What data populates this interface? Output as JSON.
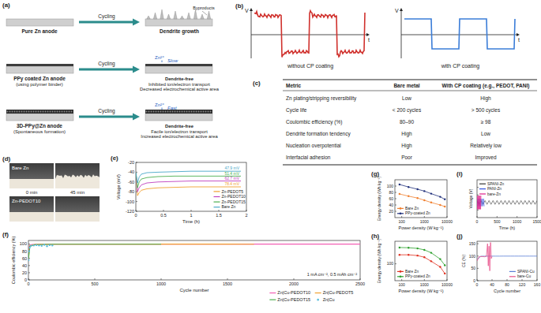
{
  "panels": {
    "a": {
      "label": "(a)",
      "rows": [
        {
          "name": "Pure Zn anode",
          "action": "Cycling",
          "note": "Byproducts",
          "result": [
            "Dendrite growth"
          ]
        },
        {
          "name": "PPy coated Zn anode",
          "sub": "(using polymer binder)",
          "action": "Cycling",
          "ion": "Zn²⁺",
          "speed": "Slow",
          "result": [
            "Dendrite-free",
            "Inhibited ion/electron transport",
            "Decreased electrochemical active area"
          ]
        },
        {
          "name": "3D-PPy@Zn anode",
          "sub": "(Spontaneous formation)",
          "action": "Cycling",
          "ion": "Zn²⁺",
          "speed": "Fast",
          "result": [
            "Dendrite-free",
            "Facile ion/electron transport",
            "Increased electrochemical active area"
          ]
        }
      ]
    },
    "b": {
      "label": "(b)",
      "plots": [
        {
          "y": "V",
          "x": "t",
          "caption": "without CP coating",
          "color": "#d0312d"
        },
        {
          "y": "V",
          "x": "t",
          "caption": "with CP coating",
          "color": "#3b7dd8"
        }
      ]
    },
    "c": {
      "label": "(c)",
      "header": [
        "Metric",
        "Bare metal",
        "With CP coating (e.g., PEDOT, PANI)"
      ],
      "rows": [
        [
          "Zn plating/stripping reversibility",
          "Low",
          "High"
        ],
        [
          "Cycle life",
          "< 200 cycles",
          "> 500 cycles"
        ],
        [
          "Coulombic efficiency (%)",
          "80–90",
          "≥ 98"
        ],
        [
          "Dendrite formation tendency",
          "High",
          "Low"
        ],
        [
          "Nucleation overpotential",
          "High",
          "Relatively low"
        ],
        [
          "Interfacial adhesion",
          "Poor",
          "Improved"
        ]
      ]
    },
    "d": {
      "label": "(d)",
      "samples": [
        "Bare Zn",
        "Zn-PEDOT10"
      ],
      "times": [
        "0 min",
        "45 min"
      ]
    }
  },
  "chart_data": [
    {
      "type": "line",
      "title": "(e)",
      "x_label": "Time (h)",
      "y_label": "Voltage (mV)",
      "xlim": [
        0,
        2
      ],
      "xticks": [
        0,
        0.5,
        1,
        1.5,
        2
      ],
      "ylim": [
        -120,
        -20
      ],
      "yticks": [
        -120,
        -100,
        -80,
        -60,
        -40,
        -20
      ],
      "grid": false,
      "legend": "lower right",
      "annotations": [
        "78.4 mV",
        "62.7 mV",
        "51.4 mV",
        "47.9 mV"
      ],
      "x": [
        0,
        0.03,
        0.06,
        0.1,
        0.2,
        0.4,
        0.7,
        1.0,
        1.3,
        1.6,
        1.9
      ],
      "series": [
        {
          "name": "Zn-PEDOT5",
          "color": "#f0a030",
          "values": [
            -40,
            -88,
            -82,
            -77,
            -74,
            -72,
            -71,
            -70,
            -70,
            -70,
            -70
          ]
        },
        {
          "name": "Zn-PEDOT10",
          "color": "#c040c0",
          "values": [
            -40,
            -80,
            -72,
            -66,
            -62,
            -60,
            -59,
            -58,
            -58,
            -58,
            -58
          ]
        },
        {
          "name": "Zn-PEDOT15",
          "color": "#4caf50",
          "values": [
            -40,
            -72,
            -60,
            -54,
            -51,
            -49,
            -48,
            -48,
            -48,
            -48,
            -48
          ]
        },
        {
          "name": "Bare Zn",
          "color": "#4aa8c8",
          "values": [
            -40,
            -62,
            -50,
            -44,
            -41,
            -40,
            -39,
            -38,
            -38,
            -38,
            -38
          ]
        }
      ]
    },
    {
      "type": "line",
      "title": "(f)",
      "x_label": "Cycle number",
      "y_label": "Coulombic efficiency (%)",
      "xlim": [
        0,
        2500
      ],
      "xticks": [
        0,
        500,
        1000,
        1500,
        2000,
        2500
      ],
      "ylim": [
        0,
        110
      ],
      "yticks": [
        0,
        20,
        40,
        60,
        80,
        100
      ],
      "grid": false,
      "legend": "below",
      "annotations": [
        "1 mA cm⁻², 0.5 mAh cm⁻²"
      ],
      "series": [
        {
          "name": "Zn|Cu-PEDOT10",
          "color": "#f25fb4",
          "line_style": "solid",
          "x": [
            1,
            5,
            10,
            30,
            100,
            300,
            500,
            1000,
            1500,
            2000,
            2500
          ],
          "values": [
            70,
            92,
            97,
            99,
            99.5,
            99.7,
            99.7,
            99.8,
            99.8,
            99.8,
            99.8
          ]
        },
        {
          "name": "Zn|Cu-PEDOT5",
          "color": "#f0a030",
          "line_style": "solid",
          "x": [
            1,
            10,
            50,
            200,
            500,
            1000,
            1500,
            1700
          ],
          "values": [
            65,
            95,
            99,
            99.5,
            99.6,
            99.7,
            99.7,
            99.6
          ]
        },
        {
          "name": "Zn|Cu-PEDOT15",
          "color": "#4caf50",
          "line_style": "solid",
          "x": [
            1,
            10,
            50,
            200,
            500,
            1000
          ],
          "values": [
            60,
            94,
            98.5,
            99.5,
            99.6,
            99.6
          ]
        },
        {
          "name": "Zn|Cu",
          "color": "#5bc0de",
          "marker": "circle",
          "line_style": "none",
          "x": [
            1,
            5,
            10,
            20,
            40,
            60,
            80,
            100,
            120,
            140,
            160,
            180
          ],
          "values": [
            55,
            80,
            90,
            95,
            96,
            97,
            96,
            95,
            98,
            94,
            97,
            96
          ]
        }
      ]
    },
    {
      "type": "line",
      "title": "(g)",
      "x_label": "Power density (W kg⁻¹)",
      "y_label": "Energy density (Wh kg⁻¹)",
      "log": "x",
      "xlim": [
        50,
        10000
      ],
      "xticks": [
        100,
        1000,
        10000
      ],
      "ylim": [
        0,
        120
      ],
      "yticks": [
        20,
        40,
        60,
        80,
        100
      ],
      "grid": false,
      "legend": "lower left",
      "x": [
        80,
        200,
        500,
        1000,
        2000,
        5000,
        8000
      ],
      "series": [
        {
          "name": "Bare Zn",
          "color": "#f08030",
          "marker": "circle",
          "values": [
            75,
            68,
            62,
            55,
            48,
            40,
            35
          ]
        },
        {
          "name": "PPy-coated Zn",
          "color": "#1f2f7a",
          "marker": "circle",
          "values": [
            105,
            97,
            90,
            84,
            76,
            66,
            58
          ]
        }
      ]
    },
    {
      "type": "line",
      "title": "(h)",
      "x_label": "Power density (W kg⁻¹)",
      "y_label": "Energy density (Wh kg⁻¹)",
      "log": true,
      "xlim": [
        50,
        10000
      ],
      "xticks": [
        100,
        1000,
        10000
      ],
      "ylim": [
        30,
        500
      ],
      "yticks": [
        100
      ],
      "grid": false,
      "legend": "lower left",
      "x": [
        80,
        200,
        500,
        1000,
        2000,
        5000,
        8000
      ],
      "series": [
        {
          "name": "Bare Zn",
          "color": "#e03020",
          "marker": "circle",
          "values": [
            190,
            190,
            180,
            160,
            120,
            80,
            50
          ]
        },
        {
          "name": "PPy-coated Zn",
          "color": "#2ca02c",
          "marker": "circle",
          "values": [
            320,
            315,
            300,
            270,
            220,
            140,
            90
          ]
        }
      ]
    },
    {
      "type": "line",
      "title": "(i)",
      "x_label": "Time (h)",
      "y_label": "Voltage (V)",
      "xlim": [
        0,
        1500
      ],
      "xticks": [
        0,
        500,
        1000,
        1500
      ],
      "ylim": [
        -0.4,
        0.6
      ],
      "yticks": [
        -0.2,
        0,
        0.2,
        0.4
      ],
      "tick_labels": "x",
      "grid": false,
      "legend": "upper left",
      "series": [
        {
          "name": "SPANI-Zn",
          "color": "#333333",
          "x": [
            0,
            50,
            100,
            150,
            200,
            250,
            300,
            350,
            400,
            450,
            500,
            550,
            600,
            650,
            700,
            750,
            800,
            850,
            900,
            950,
            1000,
            1050,
            1100,
            1150,
            1200,
            1250,
            1300,
            1350,
            1400,
            1450,
            1500
          ],
          "values": [
            0.05,
            -0.05,
            0.05,
            -0.05,
            0.05,
            -0.05,
            0.05,
            -0.05,
            0.05,
            -0.05,
            0.05,
            -0.05,
            0.05,
            -0.05,
            0.05,
            -0.05,
            0.05,
            -0.05,
            0.05,
            -0.05,
            0.05,
            -0.05,
            0.05,
            -0.05,
            0.05,
            -0.05,
            0.05,
            -0.05,
            0.05,
            -0.05,
            0.05
          ]
        },
        {
          "name": "PANI-Zn",
          "color": "#3050e0",
          "x": [
            0,
            20,
            40,
            60,
            80,
            100,
            120,
            140,
            160,
            180
          ],
          "values": [
            0.1,
            -0.1,
            0.1,
            -0.1,
            0.1,
            -0.1,
            0.1,
            -0.1,
            0.1,
            -0.1
          ]
        },
        {
          "name": "bare-Zn",
          "color": "#e0208a",
          "x": [
            0,
            10,
            20,
            30,
            40,
            50,
            60,
            70,
            80,
            90,
            100
          ],
          "values": [
            0.18,
            -0.18,
            0.18,
            -0.18,
            0.18,
            -0.18,
            0.18,
            -0.18,
            0.18,
            -0.18,
            0.18
          ]
        }
      ]
    },
    {
      "type": "line",
      "title": "(j)",
      "x_label": "Cycle number",
      "y_label": "CE (%)",
      "xlim": [
        0,
        160
      ],
      "xticks": [
        0,
        40,
        80,
        120,
        160
      ],
      "ylim": [
        0,
        160
      ],
      "yticks": [
        0,
        50,
        100,
        150
      ],
      "grid": false,
      "legend": "lower right",
      "series": [
        {
          "name": "SPANI-Cu",
          "color": "#5b7fd6",
          "x": [
            0,
            10,
            20,
            30,
            40,
            50,
            60,
            70,
            80,
            90,
            100,
            110,
            120,
            130,
            140,
            150,
            160
          ],
          "values": [
            85,
            99,
            99.5,
            99.5,
            99.6,
            99.6,
            99.6,
            99.7,
            99.7,
            99.7,
            99.7,
            99.7,
            99.7,
            99.7,
            99.7,
            99.7,
            99.7
          ]
        },
        {
          "name": "bare-Cu",
          "color": "#e8508a",
          "x": [
            0,
            5,
            10,
            15,
            20,
            25,
            28,
            30,
            32,
            34,
            36,
            38,
            40
          ],
          "values": [
            80,
            97,
            98,
            98,
            97,
            99,
            150,
            60,
            140,
            40,
            155,
            90,
            98
          ]
        }
      ]
    }
  ]
}
